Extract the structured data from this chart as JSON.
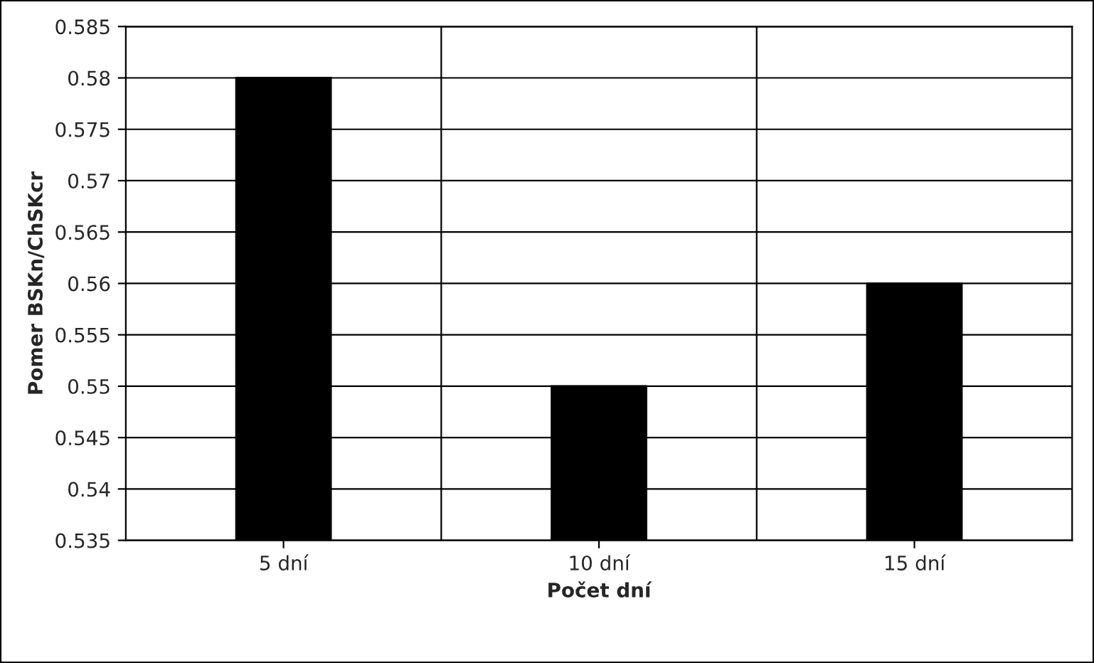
{
  "chart_data": {
    "type": "bar",
    "xlabel": "Počet dní",
    "ylabel": "Pomer BSKn/ChSKcr",
    "categories": [
      "5 dní",
      "10 dní",
      "15 dní"
    ],
    "values": [
      0.58,
      0.55,
      0.56
    ],
    "color": "#000000",
    "ylim": [
      0.535,
      0.585
    ],
    "yticks": [
      0.535,
      0.54,
      0.545,
      0.55,
      0.555,
      0.56,
      0.565,
      0.57,
      0.575,
      0.58,
      0.585
    ],
    "grid": true,
    "legend": false
  }
}
